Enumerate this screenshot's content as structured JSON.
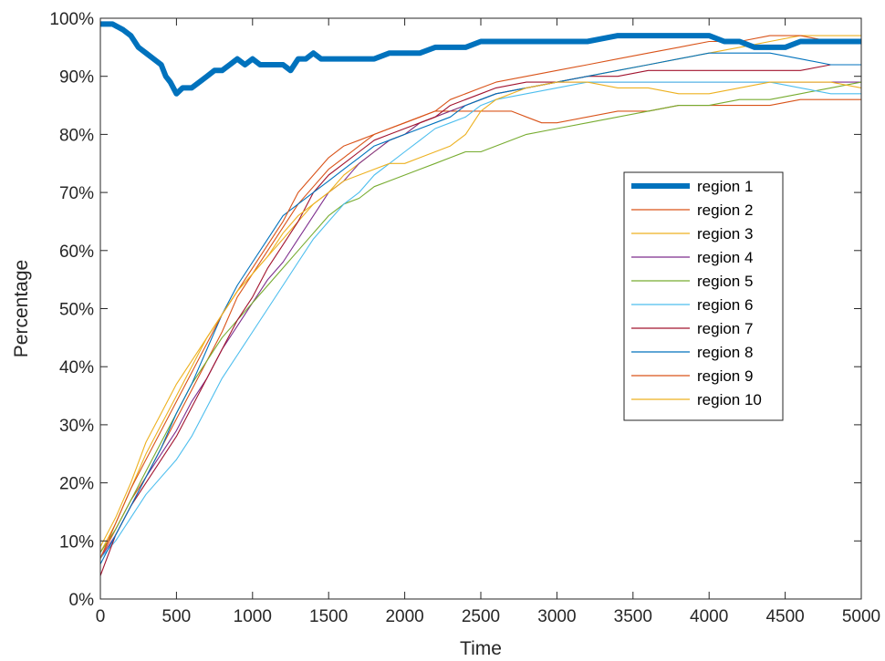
{
  "chart_data": {
    "type": "line",
    "title": "",
    "xlabel": "Time",
    "ylabel": "Percentage",
    "xlim": [
      0,
      5000
    ],
    "ylim": [
      0,
      100
    ],
    "x_ticks": [
      0,
      500,
      1000,
      1500,
      2000,
      2500,
      3000,
      3500,
      4000,
      4500,
      5000
    ],
    "x_tick_labels": [
      "0",
      "500",
      "1000",
      "1500",
      "2000",
      "2500",
      "3000",
      "3500",
      "4000",
      "4500",
      "5000"
    ],
    "y_ticks": [
      0,
      10,
      20,
      30,
      40,
      50,
      60,
      70,
      80,
      90,
      100
    ],
    "y_tick_labels": [
      "0%",
      "10%",
      "20%",
      "30%",
      "40%",
      "50%",
      "60%",
      "70%",
      "80%",
      "90%",
      "100%"
    ],
    "grid": false,
    "legend_position": "right",
    "series": [
      {
        "name": "region 1",
        "color": "#0072BD",
        "emphasis": true,
        "x": [
          0,
          80,
          150,
          200,
          250,
          300,
          350,
          400,
          430,
          460,
          500,
          540,
          600,
          650,
          700,
          750,
          800,
          850,
          900,
          950,
          1000,
          1050,
          1100,
          1150,
          1200,
          1250,
          1300,
          1350,
          1400,
          1450,
          1500,
          1600,
          1700,
          1800,
          1900,
          2000,
          2100,
          2200,
          2300,
          2400,
          2500,
          2600,
          2800,
          3000,
          3200,
          3400,
          3600,
          3800,
          4000,
          4100,
          4200,
          4300,
          4400,
          4500,
          4600,
          4700,
          4800,
          5000
        ],
        "y": [
          99,
          99,
          98,
          97,
          95,
          94,
          93,
          92,
          90,
          89,
          87,
          88,
          88,
          89,
          90,
          91,
          91,
          92,
          93,
          92,
          93,
          92,
          92,
          92,
          92,
          91,
          93,
          93,
          94,
          93,
          93,
          93,
          93,
          93,
          94,
          94,
          94,
          95,
          95,
          95,
          96,
          96,
          96,
          96,
          96,
          97,
          97,
          97,
          97,
          96,
          96,
          95,
          95,
          95,
          96,
          96,
          96,
          96
        ]
      },
      {
        "name": "region 2",
        "color": "#D95319",
        "x": [
          0,
          100,
          200,
          300,
          400,
          500,
          600,
          700,
          800,
          900,
          1000,
          1100,
          1200,
          1300,
          1400,
          1500,
          1600,
          1700,
          1800,
          1900,
          2000,
          2100,
          2200,
          2300,
          2400,
          2500,
          2600,
          2700,
          2800,
          2900,
          3000,
          3200,
          3400,
          3600,
          3800,
          4000,
          4200,
          4400,
          4600,
          4800,
          5000
        ],
        "y": [
          7,
          12,
          17,
          21,
          26,
          31,
          36,
          41,
          46,
          52,
          56,
          60,
          64,
          68,
          71,
          74,
          76,
          78,
          80,
          81,
          82,
          83,
          84,
          84,
          84,
          84,
          84,
          84,
          83,
          82,
          82,
          83,
          84,
          84,
          85,
          85,
          85,
          85,
          86,
          86,
          86
        ]
      },
      {
        "name": "region 3",
        "color": "#EDB120",
        "x": [
          0,
          100,
          200,
          300,
          400,
          500,
          600,
          700,
          800,
          900,
          1000,
          1100,
          1200,
          1300,
          1400,
          1500,
          1600,
          1700,
          1800,
          1900,
          2000,
          2100,
          2200,
          2300,
          2400,
          2500,
          2600,
          2800,
          3000,
          3200,
          3400,
          3600,
          3800,
          4000,
          4200,
          4400,
          4600,
          4800,
          5000
        ],
        "y": [
          8,
          13,
          19,
          25,
          30,
          35,
          40,
          45,
          49,
          53,
          56,
          59,
          62,
          65,
          68,
          70,
          73,
          75,
          77,
          79,
          80,
          82,
          83,
          84,
          85,
          86,
          87,
          88,
          89,
          90,
          91,
          92,
          93,
          94,
          95,
          96,
          97,
          97,
          97
        ]
      },
      {
        "name": "region 4",
        "color": "#7E2F8E",
        "x": [
          0,
          100,
          200,
          300,
          400,
          500,
          600,
          700,
          800,
          900,
          1000,
          1100,
          1200,
          1300,
          1400,
          1500,
          1600,
          1700,
          1800,
          1900,
          2000,
          2100,
          2200,
          2300,
          2400,
          2500,
          2600,
          2800,
          3000,
          3200,
          3400,
          3600,
          3800,
          4000,
          4200,
          4400,
          4600,
          4800,
          5000
        ],
        "y": [
          7,
          11,
          16,
          21,
          25,
          29,
          34,
          38,
          43,
          47,
          51,
          55,
          58,
          62,
          66,
          70,
          72,
          75,
          77,
          79,
          80,
          82,
          83,
          84,
          85,
          86,
          87,
          88,
          89,
          89,
          89,
          89,
          89,
          89,
          89,
          89,
          89,
          89,
          89
        ]
      },
      {
        "name": "region 5",
        "color": "#77AC30",
        "x": [
          0,
          100,
          200,
          300,
          400,
          500,
          600,
          700,
          800,
          900,
          1000,
          1100,
          1200,
          1300,
          1400,
          1500,
          1600,
          1700,
          1800,
          1900,
          2000,
          2100,
          2200,
          2300,
          2400,
          2500,
          2600,
          2800,
          3000,
          3200,
          3400,
          3600,
          3800,
          4000,
          4200,
          4400,
          4600,
          4800,
          5000
        ],
        "y": [
          8,
          12,
          17,
          22,
          27,
          32,
          37,
          41,
          45,
          48,
          51,
          54,
          57,
          60,
          63,
          66,
          68,
          69,
          71,
          72,
          73,
          74,
          75,
          76,
          77,
          77,
          78,
          80,
          81,
          82,
          83,
          84,
          85,
          85,
          86,
          86,
          87,
          88,
          89
        ]
      },
      {
        "name": "region 6",
        "color": "#4DBEEE",
        "x": [
          0,
          100,
          200,
          300,
          400,
          500,
          600,
          700,
          800,
          900,
          1000,
          1100,
          1200,
          1300,
          1400,
          1500,
          1600,
          1700,
          1800,
          1900,
          2000,
          2100,
          2200,
          2300,
          2400,
          2500,
          2600,
          2800,
          3000,
          3200,
          3400,
          3600,
          3800,
          4000,
          4200,
          4400,
          4600,
          4800,
          5000
        ],
        "y": [
          7,
          10,
          14,
          18,
          21,
          24,
          28,
          33,
          38,
          42,
          46,
          50,
          54,
          58,
          62,
          65,
          68,
          70,
          73,
          75,
          77,
          79,
          81,
          82,
          83,
          85,
          86,
          87,
          88,
          89,
          89,
          89,
          89,
          89,
          89,
          89,
          88,
          87,
          87
        ]
      },
      {
        "name": "region 7",
        "color": "#A2142F",
        "x": [
          0,
          100,
          200,
          300,
          400,
          500,
          600,
          700,
          800,
          900,
          1000,
          1100,
          1200,
          1300,
          1400,
          1500,
          1600,
          1700,
          1800,
          1900,
          2000,
          2100,
          2200,
          2300,
          2400,
          2500,
          2600,
          2800,
          3000,
          3200,
          3400,
          3600,
          3800,
          4000,
          4200,
          4400,
          4600,
          4800,
          5000
        ],
        "y": [
          4,
          11,
          16,
          20,
          24,
          28,
          33,
          38,
          43,
          48,
          52,
          57,
          61,
          65,
          70,
          73,
          75,
          77,
          79,
          80,
          81,
          82,
          83,
          85,
          86,
          87,
          88,
          89,
          89,
          90,
          90,
          91,
          91,
          91,
          91,
          91,
          91,
          92,
          92
        ]
      },
      {
        "name": "region 8",
        "color": "#0072BD",
        "x": [
          0,
          100,
          200,
          300,
          400,
          500,
          600,
          700,
          800,
          900,
          1000,
          1100,
          1200,
          1300,
          1400,
          1500,
          1600,
          1700,
          1800,
          1900,
          2000,
          2100,
          2200,
          2300,
          2400,
          2500,
          2600,
          2800,
          3000,
          3200,
          3400,
          3600,
          3800,
          4000,
          4200,
          4400,
          4600,
          4800,
          5000
        ],
        "y": [
          6,
          11,
          16,
          21,
          26,
          32,
          37,
          43,
          49,
          54,
          58,
          62,
          66,
          68,
          70,
          72,
          74,
          76,
          78,
          79,
          80,
          81,
          82,
          83,
          85,
          86,
          87,
          88,
          89,
          90,
          91,
          92,
          93,
          94,
          94,
          94,
          93,
          92,
          92
        ]
      },
      {
        "name": "region 9",
        "color": "#D95319",
        "x": [
          0,
          100,
          200,
          300,
          400,
          500,
          600,
          700,
          800,
          900,
          1000,
          1100,
          1200,
          1300,
          1400,
          1500,
          1600,
          1700,
          1800,
          1900,
          2000,
          2100,
          2200,
          2300,
          2400,
          2500,
          2600,
          2800,
          3000,
          3200,
          3400,
          3600,
          3800,
          4000,
          4200,
          4400,
          4600,
          4800,
          5000
        ],
        "y": [
          7,
          13,
          19,
          24,
          29,
          34,
          39,
          44,
          49,
          53,
          57,
          61,
          65,
          70,
          73,
          76,
          78,
          79,
          80,
          81,
          82,
          83,
          84,
          86,
          87,
          88,
          89,
          90,
          91,
          92,
          93,
          94,
          95,
          96,
          96,
          97,
          97,
          96,
          96
        ]
      },
      {
        "name": "region 10",
        "color": "#EDB120",
        "x": [
          0,
          100,
          200,
          300,
          400,
          500,
          600,
          700,
          800,
          900,
          1000,
          1100,
          1200,
          1300,
          1400,
          1500,
          1600,
          1700,
          1800,
          1900,
          2000,
          2100,
          2200,
          2300,
          2400,
          2500,
          2600,
          2800,
          3000,
          3200,
          3400,
          3600,
          3800,
          4000,
          4200,
          4400,
          4600,
          4800,
          5000
        ],
        "y": [
          9,
          14,
          20,
          27,
          32,
          37,
          41,
          45,
          49,
          53,
          56,
          59,
          63,
          66,
          68,
          70,
          72,
          73,
          74,
          75,
          75,
          76,
          77,
          78,
          80,
          84,
          86,
          88,
          89,
          89,
          88,
          88,
          87,
          87,
          88,
          89,
          89,
          89,
          88
        ]
      }
    ]
  }
}
